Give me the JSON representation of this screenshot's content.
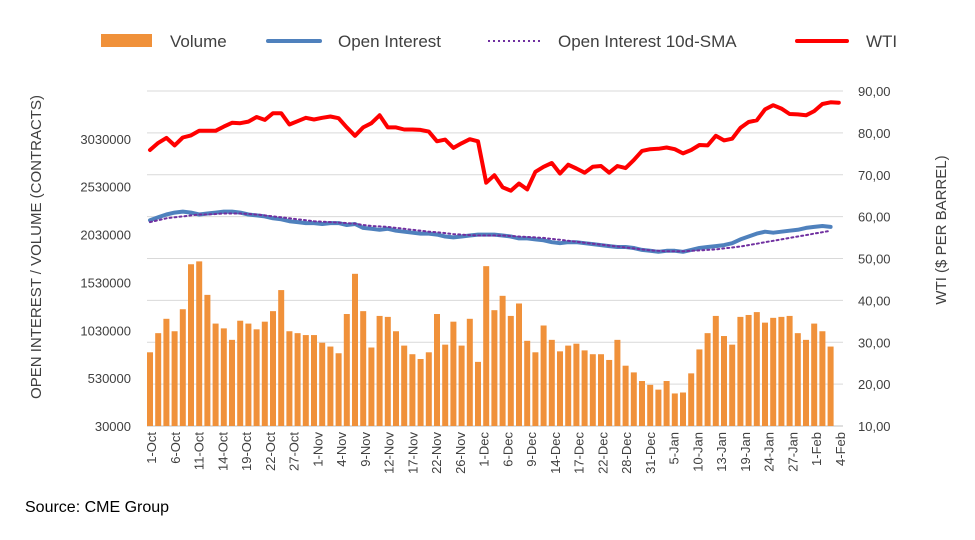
{
  "source_note": "Source: CME Group",
  "legend": {
    "volume": "Volume",
    "open_interest": "Open Interest",
    "oi_sma": "Open Interest 10d-SMA",
    "wti": "WTI"
  },
  "colors": {
    "volume": "#F0913A",
    "open_interest": "#4F81BD",
    "oi_sma": "#7030A0",
    "wti": "#FF0000",
    "grid": "#D9D9D9"
  },
  "chart_data": {
    "type": "bar",
    "ylabel_left": "OPEN INTEREST / VOLUME (CONTRACTS)",
    "ylabel_right": "WTI ($ PER BARREL)",
    "ylim_left": [
      30000,
      3530000
    ],
    "ylim_right": [
      10,
      90
    ],
    "yticks_left": [
      "30000",
      "530000",
      "1030000",
      "1530000",
      "2030000",
      "2530000",
      "3030000"
    ],
    "yticks_right": [
      "10,00",
      "20,00",
      "30,00",
      "40,00",
      "50,00",
      "60,00",
      "70,00",
      "80,00",
      "90,00"
    ],
    "grid": true,
    "legend_position": "top",
    "x_tick_labels": [
      "1-Oct",
      "6-Oct",
      "11-Oct",
      "14-Oct",
      "19-Oct",
      "22-Oct",
      "27-Oct",
      "1-Nov",
      "4-Nov",
      "9-Nov",
      "12-Nov",
      "17-Nov",
      "22-Nov",
      "26-Nov",
      "1-Dec",
      "6-Dec",
      "9-Dec",
      "14-Dec",
      "17-Dec",
      "22-Dec",
      "28-Dec",
      "31-Dec",
      "5-Jan",
      "10-Jan",
      "13-Jan",
      "19-Jan",
      "24-Jan",
      "27-Jan",
      "1-Feb",
      "4-Feb"
    ],
    "n_sessions": 85,
    "series": [
      {
        "name": "Volume",
        "type": "bar",
        "axis": "left",
        "values": [
          800000,
          1000000,
          1150000,
          1020000,
          1250000,
          1720000,
          1750000,
          1400000,
          1100000,
          1050000,
          930000,
          1130000,
          1100000,
          1040000,
          1120000,
          1230000,
          1450000,
          1020000,
          1000000,
          980000,
          980000,
          900000,
          860000,
          790000,
          1200000,
          1620000,
          1230000,
          850000,
          1180000,
          1170000,
          1020000,
          870000,
          780000,
          730000,
          800000,
          1200000,
          880000,
          1120000,
          870000,
          1150000,
          700000,
          1700000,
          1240000,
          1390000,
          1180000,
          1310000,
          920000,
          800000,
          1080000,
          930000,
          810000,
          870000,
          890000,
          820000,
          780000,
          780000,
          720000,
          930000,
          660000,
          590000,
          500000,
          460000,
          410000,
          500000,
          370000,
          380000,
          580000,
          830000,
          1000000,
          1180000,
          970000,
          880000,
          1170000,
          1190000,
          1220000,
          1110000,
          1160000,
          1170000,
          1180000,
          1000000,
          930000,
          1100000,
          1020000,
          860000,
          null
        ]
      },
      {
        "name": "Open Interest",
        "type": "line",
        "axis": "left",
        "values": [
          2180000,
          2210000,
          2240000,
          2260000,
          2270000,
          2260000,
          2240000,
          2250000,
          2260000,
          2270000,
          2270000,
          2260000,
          2240000,
          2230000,
          2220000,
          2200000,
          2190000,
          2170000,
          2160000,
          2150000,
          2150000,
          2140000,
          2150000,
          2150000,
          2130000,
          2140000,
          2100000,
          2090000,
          2080000,
          2090000,
          2070000,
          2060000,
          2050000,
          2040000,
          2040000,
          2030000,
          2010000,
          2000000,
          2010000,
          2020000,
          2030000,
          2030000,
          2030000,
          2020000,
          2010000,
          1990000,
          1990000,
          1980000,
          1970000,
          1950000,
          1940000,
          1950000,
          1950000,
          1940000,
          1930000,
          1920000,
          1910000,
          1900000,
          1900000,
          1890000,
          1870000,
          1860000,
          1850000,
          1860000,
          1860000,
          1850000,
          1870000,
          1890000,
          1900000,
          1910000,
          1920000,
          1940000,
          1980000,
          2010000,
          2040000,
          2060000,
          2050000,
          2060000,
          2070000,
          2080000,
          2100000,
          2110000,
          2120000,
          2110000,
          null
        ]
      },
      {
        "name": "Open Interest 10d-SMA",
        "type": "line",
        "axis": "left",
        "values": [
          2160000,
          2180000,
          2200000,
          2210000,
          2220000,
          2230000,
          2240000,
          2240000,
          2245000,
          2250000,
          2250000,
          2250000,
          2245000,
          2240000,
          2230000,
          2220000,
          2210000,
          2200000,
          2190000,
          2180000,
          2170000,
          2165000,
          2160000,
          2155000,
          2150000,
          2145000,
          2130000,
          2120000,
          2115000,
          2110000,
          2100000,
          2090000,
          2080000,
          2070000,
          2060000,
          2055000,
          2045000,
          2035000,
          2030000,
          2025000,
          2020000,
          2020000,
          2020000,
          2020000,
          2015000,
          2010000,
          2005000,
          2000000,
          1995000,
          1985000,
          1975000,
          1965000,
          1955000,
          1945000,
          1935000,
          1925000,
          1915000,
          1905000,
          1895000,
          1885000,
          1875000,
          1865000,
          1860000,
          1855000,
          1855000,
          1855000,
          1860000,
          1865000,
          1870000,
          1875000,
          1885000,
          1895000,
          1905000,
          1920000,
          1935000,
          1950000,
          1965000,
          1980000,
          1995000,
          2010000,
          2025000,
          2040000,
          2055000,
          2070000,
          null
        ]
      },
      {
        "name": "WTI",
        "type": "line",
        "axis": "right",
        "values": [
          75.9,
          77.6,
          78.8,
          77.0,
          78.9,
          79.4,
          80.5,
          80.5,
          80.5,
          81.5,
          82.4,
          82.3,
          82.7,
          83.8,
          83.1,
          84.7,
          84.7,
          82.0,
          82.8,
          83.6,
          83.2,
          83.6,
          83.9,
          83.5,
          81.3,
          79.3,
          81.3,
          82.3,
          84.2,
          81.3,
          81.3,
          80.8,
          80.8,
          80.7,
          80.3,
          78.0,
          78.4,
          76.4,
          77.5,
          78.5,
          78.0,
          68.1,
          69.9,
          67.0,
          66.2,
          67.9,
          66.5,
          70.7,
          71.9,
          72.8,
          70.3,
          72.4,
          71.5,
          70.5,
          71.9,
          72.1,
          70.5,
          72.1,
          71.6,
          73.5,
          75.7,
          76.1,
          76.2,
          76.5,
          76.1,
          75.1,
          75.9,
          77.1,
          77.0,
          79.3,
          78.2,
          78.6,
          81.2,
          82.6,
          83.0,
          85.6,
          86.6,
          85.8,
          84.5,
          84.4,
          84.2,
          85.2,
          86.9,
          87.3,
          87.2
        ]
      }
    ]
  }
}
